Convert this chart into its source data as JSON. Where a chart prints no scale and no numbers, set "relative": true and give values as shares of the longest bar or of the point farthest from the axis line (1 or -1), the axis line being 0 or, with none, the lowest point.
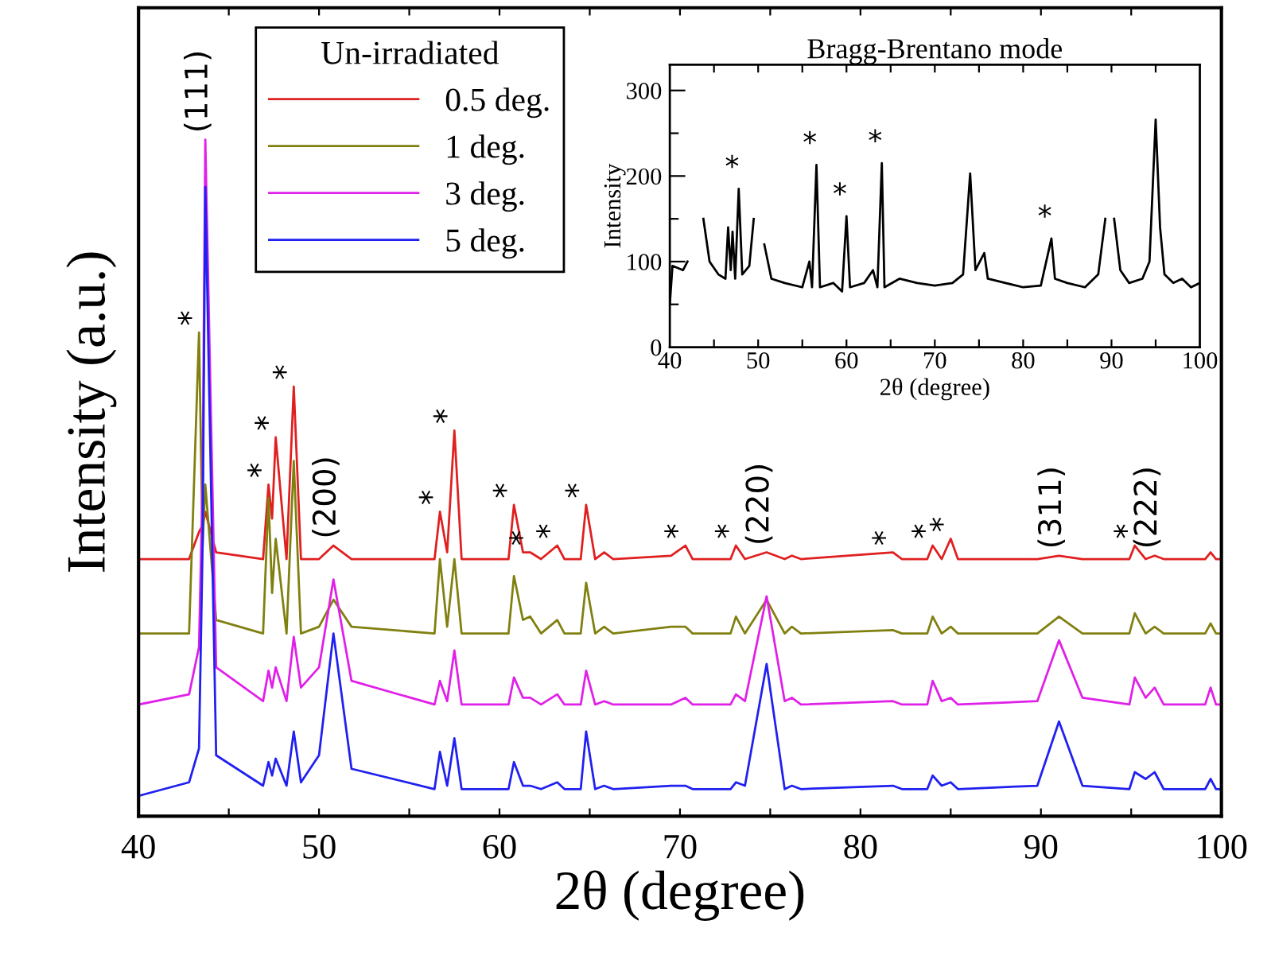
{
  "chart_data": [
    {
      "type": "line",
      "relative": true,
      "xlabel": "2θ (degree)",
      "ylabel": "Intensity (a.u.)",
      "legend_title": "Un-irradiated",
      "legend": "top left",
      "tick_labels": "x",
      "xlim": [
        40,
        100
      ],
      "xticks": [
        40,
        {
          "value": 45,
          "label": null
        },
        50,
        {
          "value": 55,
          "label": null
        },
        60,
        {
          "value": 65,
          "label": null
        },
        70,
        {
          "value": 75,
          "label": null
        },
        80,
        {
          "value": 85,
          "label": null
        },
        90,
        {
          "value": 95,
          "label": null
        },
        100
      ],
      "x": [
        40,
        42.8,
        43.35,
        43.55,
        43.7,
        44.3,
        46.9,
        47.2,
        47.4,
        47.6,
        48.2,
        48.6,
        49.0,
        50.0,
        50.8,
        51.8,
        56.4,
        56.7,
        57.1,
        57.5,
        57.9,
        60.5,
        60.8,
        61.3,
        61.7,
        62.3,
        63.2,
        63.6,
        64.5,
        64.8,
        65.3,
        65.8,
        66.3,
        69.5,
        70.3,
        70.7,
        72.8,
        73.1,
        73.6,
        74.8,
        75.8,
        76.2,
        76.7,
        81.8,
        82.3,
        83.7,
        84.0,
        84.5,
        85.0,
        85.4,
        89.8,
        91.0,
        92.3,
        94.9,
        95.2,
        95.8,
        96.3,
        96.8,
        99.1,
        99.4,
        99.7,
        100
      ],
      "series": [
        {
          "name": "0.5 deg.",
          "color": "#e02020",
          "values": [
            0.38,
            0.38,
            0.42,
            0.43,
            0.45,
            0.39,
            0.38,
            0.49,
            0.44,
            0.56,
            0.38,
            0.635,
            0.38,
            0.38,
            0.4,
            0.38,
            0.38,
            0.45,
            0.39,
            0.57,
            0.38,
            0.38,
            0.46,
            0.39,
            0.39,
            0.38,
            0.4,
            0.38,
            0.38,
            0.46,
            0.38,
            0.39,
            0.38,
            0.385,
            0.4,
            0.38,
            0.38,
            0.4,
            0.38,
            0.39,
            0.38,
            0.385,
            0.38,
            0.39,
            0.38,
            0.38,
            0.4,
            0.38,
            0.41,
            0.38,
            0.38,
            0.385,
            0.38,
            0.38,
            0.4,
            0.38,
            0.385,
            0.38,
            0.38,
            0.39,
            0.38,
            0.38
          ]
        },
        {
          "name": "1 deg.",
          "color": "#808010",
          "values": [
            0.27,
            0.27,
            0.715,
            0.4,
            0.49,
            0.29,
            0.27,
            0.47,
            0.33,
            0.41,
            0.27,
            0.525,
            0.27,
            0.28,
            0.32,
            0.28,
            0.27,
            0.38,
            0.28,
            0.38,
            0.27,
            0.27,
            0.355,
            0.29,
            0.295,
            0.27,
            0.29,
            0.27,
            0.27,
            0.345,
            0.27,
            0.28,
            0.27,
            0.28,
            0.28,
            0.27,
            0.27,
            0.295,
            0.27,
            0.32,
            0.27,
            0.28,
            0.27,
            0.275,
            0.27,
            0.27,
            0.295,
            0.27,
            0.28,
            0.27,
            0.27,
            0.295,
            0.27,
            0.27,
            0.3,
            0.27,
            0.28,
            0.27,
            0.27,
            0.285,
            0.27,
            0.27
          ]
        },
        {
          "name": "3 deg.",
          "color": "#e020e8",
          "values": [
            0.165,
            0.18,
            0.25,
            0.5,
            1.0,
            0.22,
            0.17,
            0.215,
            0.19,
            0.22,
            0.17,
            0.265,
            0.19,
            0.22,
            0.35,
            0.2,
            0.165,
            0.2,
            0.17,
            0.245,
            0.165,
            0.165,
            0.205,
            0.175,
            0.175,
            0.165,
            0.18,
            0.165,
            0.165,
            0.215,
            0.165,
            0.17,
            0.165,
            0.165,
            0.175,
            0.165,
            0.165,
            0.18,
            0.17,
            0.325,
            0.17,
            0.175,
            0.165,
            0.17,
            0.165,
            0.165,
            0.2,
            0.17,
            0.175,
            0.165,
            0.17,
            0.26,
            0.175,
            0.165,
            0.205,
            0.175,
            0.19,
            0.165,
            0.165,
            0.19,
            0.165,
            0.165
          ]
        },
        {
          "name": "5 deg.",
          "color": "#2020f0",
          "values": [
            0.03,
            0.05,
            0.1,
            0.4,
            0.93,
            0.09,
            0.045,
            0.08,
            0.06,
            0.085,
            0.045,
            0.125,
            0.05,
            0.09,
            0.27,
            0.07,
            0.04,
            0.095,
            0.045,
            0.115,
            0.04,
            0.04,
            0.08,
            0.045,
            0.045,
            0.04,
            0.05,
            0.04,
            0.04,
            0.125,
            0.04,
            0.045,
            0.04,
            0.045,
            0.045,
            0.04,
            0.04,
            0.05,
            0.045,
            0.225,
            0.04,
            0.045,
            0.04,
            0.045,
            0.04,
            0.04,
            0.06,
            0.045,
            0.05,
            0.04,
            0.045,
            0.14,
            0.045,
            0.04,
            0.065,
            0.055,
            0.065,
            0.04,
            0.04,
            0.055,
            0.04,
            0.04
          ]
        }
      ],
      "annotations": [
        {
          "text": "*",
          "x": 43.35,
          "y": 0.715
        },
        {
          "text": "*",
          "x": 47.2,
          "y": 0.49
        },
        {
          "text": "*",
          "x": 47.6,
          "y": 0.56
        },
        {
          "text": "*",
          "x": 48.6,
          "y": 0.635
        },
        {
          "text": "*",
          "x": 56.7,
          "y": 0.45
        },
        {
          "text": "*",
          "x": 57.5,
          "y": 0.57
        },
        {
          "text": "*",
          "x": 60.8,
          "y": 0.46
        },
        {
          "text": "*",
          "x": 61.7,
          "y": 0.39
        },
        {
          "text": "*",
          "x": 63.2,
          "y": 0.4
        },
        {
          "text": "*",
          "x": 64.8,
          "y": 0.46
        },
        {
          "text": "*",
          "x": 70.3,
          "y": 0.4
        },
        {
          "text": "*",
          "x": 73.1,
          "y": 0.4
        },
        {
          "text": "*",
          "x": 81.8,
          "y": 0.39
        },
        {
          "text": "*",
          "x": 84.0,
          "y": 0.4
        },
        {
          "text": "*",
          "x": 85.0,
          "y": 0.41
        },
        {
          "text": "*",
          "x": 95.2,
          "y": 0.4
        },
        {
          "text": "(111)",
          "x": 43.7,
          "y": 1.0
        },
        {
          "text": "(200)",
          "x": 50.8,
          "y": 0.4
        },
        {
          "text": "(220)",
          "x": 74.8,
          "y": 0.39
        },
        {
          "text": "(311)",
          "x": 91.0,
          "y": 0.385
        },
        {
          "text": "(222)",
          "x": 96.3,
          "y": 0.385
        }
      ]
    },
    {
      "type": "line",
      "title": "Bragg-Brentano mode",
      "xlabel": "2θ (degree)",
      "ylabel": "Intensity",
      "xlim": [
        40,
        100
      ],
      "xticks": [
        40,
        {
          "value": 45,
          "label": null
        },
        50,
        {
          "value": 55,
          "label": null
        },
        60,
        {
          "value": 65,
          "label": null
        },
        70,
        {
          "value": 75,
          "label": null
        },
        80,
        {
          "value": 85,
          "label": null
        },
        90,
        {
          "value": 95,
          "label": null
        },
        100
      ],
      "ylim": [
        0,
        330
      ],
      "yticks": [
        0,
        {
          "value": 50,
          "label": null
        },
        100,
        {
          "value": 150,
          "label": null
        },
        200,
        {
          "value": 250,
          "label": null
        },
        300
      ],
      "x": [
        40.0,
        40.3,
        41.5,
        42.0,
        42.4,
        43.2,
        43.8,
        44.5,
        45.5,
        46.3,
        46.6,
        46.9,
        47.1,
        47.4,
        47.8,
        48.2,
        49.0,
        49.5,
        49.8,
        50.3,
        50.7,
        51.5,
        53,
        55,
        55.8,
        56.1,
        56.6,
        57.0,
        58.5,
        59.5,
        60.0,
        60.4,
        62.0,
        63.0,
        63.5,
        64.0,
        64.3,
        66,
        68,
        70,
        72,
        73.2,
        74.0,
        74.6,
        75.6,
        76,
        78,
        80,
        82,
        83.2,
        83.6,
        85,
        87,
        88.5,
        89.3,
        89.8,
        90.3,
        91,
        92,
        93.5,
        94.3,
        95.0,
        95.5,
        96,
        97,
        98,
        99,
        100
      ],
      "series": [
        {
          "color": "#000000",
          "values": [
            50,
            95,
            90,
            100,
            null,
            null,
            150,
            100,
            85,
            80,
            140,
            90,
            135,
            80,
            185,
            85,
            95,
            150,
            null,
            null,
            120,
            80,
            75,
            70,
            100,
            70,
            213,
            70,
            75,
            65,
            153,
            70,
            75,
            90,
            70,
            215,
            70,
            80,
            75,
            72,
            75,
            85,
            203,
            90,
            110,
            80,
            75,
            70,
            72,
            127,
            80,
            75,
            70,
            85,
            150,
            null,
            150,
            90,
            75,
            80,
            100,
            266,
            140,
            85,
            75,
            80,
            70,
            75
          ]
        }
      ],
      "annotations": [
        {
          "text": "*",
          "x": 47.8,
          "y": 185
        },
        {
          "text": "*",
          "x": 56.6,
          "y": 213
        },
        {
          "text": "*",
          "x": 60.0,
          "y": 153
        },
        {
          "text": "*",
          "x": 64.0,
          "y": 215
        },
        {
          "text": "*",
          "x": 83.2,
          "y": 127
        }
      ]
    }
  ]
}
